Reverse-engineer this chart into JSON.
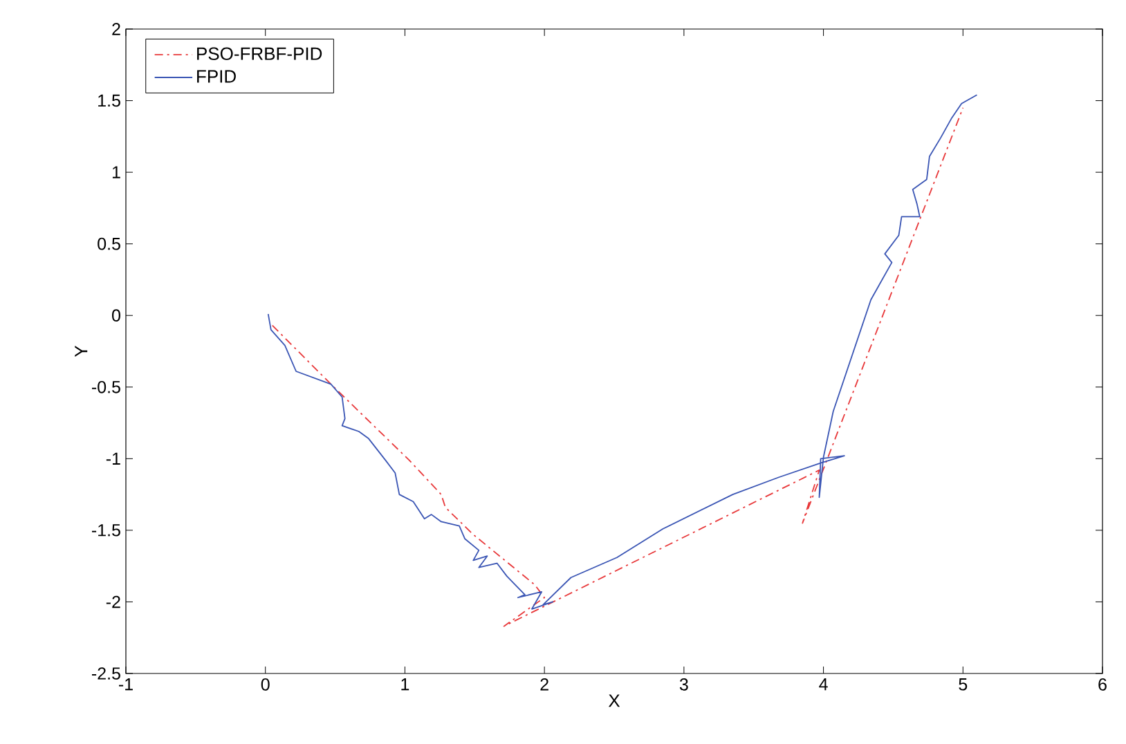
{
  "chart_data": {
    "type": "line",
    "xlabel": "X",
    "ylabel": "Y",
    "xlim": [
      -1,
      6
    ],
    "ylim": [
      -2.5,
      2
    ],
    "xticks": [
      -1,
      0,
      1,
      2,
      3,
      4,
      5,
      6
    ],
    "yticks": [
      -2.5,
      -2,
      -1.5,
      -1,
      -0.5,
      0,
      0.5,
      1,
      1.5,
      2
    ],
    "legend": "top left",
    "grid": false,
    "marker": "none",
    "series": [
      {
        "name": "PSO-FRBF-PID",
        "color": "#e8383a",
        "line_style": "dashdot",
        "x": [
          0.05,
          0.47,
          1.03,
          1.26,
          1.29,
          1.49,
          1.93,
          2.0,
          1.71,
          3.97,
          3.85,
          5.0
        ],
        "values": [
          -0.07,
          -0.48,
          -1.01,
          -1.25,
          -1.34,
          -1.53,
          -1.88,
          -1.97,
          -2.17,
          -1.08,
          -1.45,
          1.45
        ]
      },
      {
        "name": "FPID",
        "color": "#3a55b4",
        "line_style": "solid",
        "x": [
          0.02,
          0.04,
          0.14,
          0.22,
          0.47,
          0.55,
          0.57,
          0.55,
          0.67,
          0.74,
          0.86,
          0.93,
          0.96,
          1.06,
          1.14,
          1.19,
          1.26,
          1.39,
          1.43,
          1.53,
          1.49,
          1.59,
          1.53,
          1.66,
          1.73,
          1.79,
          1.86,
          1.81,
          1.98,
          1.91,
          2.06,
          1.99,
          2.19,
          2.52,
          2.85,
          3.35,
          3.68,
          3.98,
          4.15,
          3.98,
          3.97,
          4.0,
          4.07,
          4.34,
          4.49,
          4.44,
          4.54,
          4.56,
          4.69,
          4.67,
          4.64,
          4.74,
          4.76,
          4.84,
          4.92,
          4.99,
          5.1
        ],
        "values": [
          0.01,
          -0.1,
          -0.21,
          -0.39,
          -0.48,
          -0.57,
          -0.72,
          -0.77,
          -0.81,
          -0.86,
          -1.01,
          -1.1,
          -1.25,
          -1.3,
          -1.42,
          -1.39,
          -1.44,
          -1.47,
          -1.56,
          -1.64,
          -1.71,
          -1.68,
          -1.76,
          -1.73,
          -1.82,
          -1.88,
          -1.95,
          -1.97,
          -1.93,
          -2.05,
          -2.0,
          -2.02,
          -1.83,
          -1.69,
          -1.49,
          -1.25,
          -1.13,
          -1.03,
          -0.98,
          -1.0,
          -1.27,
          -0.99,
          -0.67,
          0.11,
          0.37,
          0.43,
          0.56,
          0.69,
          0.69,
          0.78,
          0.88,
          0.95,
          1.11,
          1.24,
          1.38,
          1.48,
          1.54
        ]
      }
    ]
  }
}
